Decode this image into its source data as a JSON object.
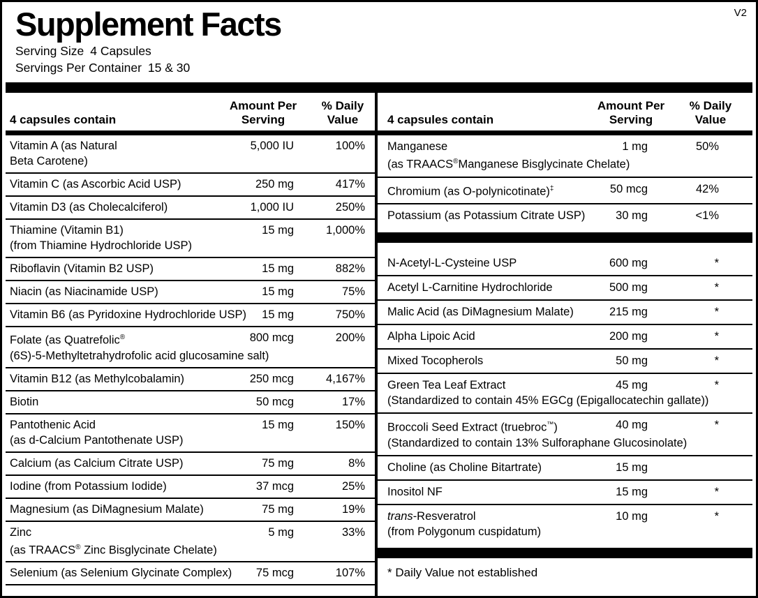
{
  "label": {
    "title": "Supplement Facts",
    "version": "V2",
    "serving_size_label": "Serving Size",
    "serving_size_value": "4 Capsules",
    "servings_per_container_label": "Servings Per Container",
    "servings_per_container_value": "15 & 30",
    "footnote": "*  Daily Value not established"
  },
  "columns": [
    {
      "id": "left",
      "header": {
        "contain": "4 capsules contain",
        "amount": "Amount Per Serving",
        "dv": "% Daily Value"
      },
      "sections": [
        {
          "rows": [
            {
              "lines": [
                [
                  {
                    "t": "Vitamin A (as Natural"
                  }
                ],
                [
                  {
                    "t": "Beta Carotene)"
                  }
                ]
              ],
              "amount": "5,000 IU",
              "dv": "100%"
            },
            {
              "lines": [
                [
                  {
                    "t": "Vitamin C (as Ascorbic Acid USP)"
                  }
                ]
              ],
              "amount": "250 mg",
              "dv": "417%"
            },
            {
              "lines": [
                [
                  {
                    "t": "Vitamin D3 (as Cholecalciferol)"
                  }
                ]
              ],
              "amount": "1,000 IU",
              "dv": "250%"
            },
            {
              "lines": [
                [
                  {
                    "t": "Thiamine (Vitamin B1)"
                  }
                ],
                [
                  {
                    "t": "(from Thiamine Hydrochloride USP)"
                  }
                ]
              ],
              "amount": "15 mg",
              "dv": "1,000%"
            },
            {
              "lines": [
                [
                  {
                    "t": "Riboflavin (Vitamin B2 USP)"
                  }
                ]
              ],
              "amount": "15 mg",
              "dv": "882%"
            },
            {
              "lines": [
                [
                  {
                    "t": "Niacin (as Niacinamide USP)"
                  }
                ]
              ],
              "amount": "15 mg",
              "dv": "75%"
            },
            {
              "lines": [
                [
                  {
                    "t": "Vitamin B6 (as Pyridoxine Hydrochloride USP)"
                  }
                ]
              ],
              "amount": "15 mg",
              "dv": "750%"
            },
            {
              "lines": [
                [
                  {
                    "t": "Folate (as Quatrefolic"
                  },
                  {
                    "t": "®",
                    "s": "sup"
                  }
                ],
                [
                  {
                    "t": "(6S)-5-Methyltetrahydrofolic acid glucosamine salt)"
                  }
                ]
              ],
              "amount": "800 mcg",
              "dv": "200%"
            },
            {
              "lines": [
                [
                  {
                    "t": "Vitamin B12 (as Methylcobalamin)"
                  }
                ]
              ],
              "amount": "250 mcg",
              "dv": "4,167%"
            },
            {
              "lines": [
                [
                  {
                    "t": "Biotin"
                  }
                ]
              ],
              "amount": "50 mcg",
              "dv": "17%"
            },
            {
              "lines": [
                [
                  {
                    "t": "Pantothenic Acid"
                  }
                ],
                [
                  {
                    "t": "(as d-Calcium Pantothenate USP)"
                  }
                ]
              ],
              "amount": "15 mg",
              "dv": "150%"
            },
            {
              "lines": [
                [
                  {
                    "t": "Calcium (as Calcium Citrate USP)"
                  }
                ]
              ],
              "amount": "75 mg",
              "dv": "8%"
            },
            {
              "lines": [
                [
                  {
                    "t": "Iodine (from Potassium Iodide)"
                  }
                ]
              ],
              "amount": "37 mcg",
              "dv": "25%"
            },
            {
              "lines": [
                [
                  {
                    "t": "Magnesium (as DiMagnesium Malate)"
                  }
                ]
              ],
              "amount": "75 mg",
              "dv": "19%"
            },
            {
              "lines": [
                [
                  {
                    "t": "Zinc"
                  }
                ],
                [
                  {
                    "t": "(as TRAACS"
                  },
                  {
                    "t": "®",
                    "s": "sup"
                  },
                  {
                    "t": " Zinc Bisglycinate Chelate)"
                  }
                ]
              ],
              "amount": "5 mg",
              "dv": "33%"
            },
            {
              "lines": [
                [
                  {
                    "t": "Selenium (as Selenium Glycinate Complex)"
                  }
                ]
              ],
              "amount": "75 mcg",
              "dv": "107%"
            }
          ]
        }
      ]
    },
    {
      "id": "right",
      "header": {
        "contain": "4 capsules contain",
        "amount": "Amount Per Serving",
        "dv": "% Daily Value"
      },
      "sections": [
        {
          "rows": [
            {
              "lines": [
                [
                  {
                    "t": "Manganese"
                  }
                ],
                [
                  {
                    "t": "(as TRAACS"
                  },
                  {
                    "t": "®",
                    "s": "sup"
                  },
                  {
                    "t": "Manganese Bisglycinate Chelate)"
                  }
                ]
              ],
              "amount": "1 mg",
              "dv": "50%"
            },
            {
              "lines": [
                [
                  {
                    "t": "Chromium (as O-polynicotinate)"
                  },
                  {
                    "t": "‡",
                    "s": "sup"
                  }
                ]
              ],
              "amount": "50 mcg",
              "dv": "42%"
            },
            {
              "lines": [
                [
                  {
                    "t": "Potassium (as Potassium Citrate USP)"
                  }
                ]
              ],
              "amount": "30 mg",
              "dv": "<1%"
            }
          ]
        },
        {
          "rows": [
            {
              "lines": [
                [
                  {
                    "t": "N-Acetyl-L-Cysteine USP"
                  }
                ]
              ],
              "amount": "600 mg",
              "dv": "*"
            },
            {
              "lines": [
                [
                  {
                    "t": "Acetyl L-Carnitine Hydrochloride"
                  }
                ]
              ],
              "amount": "500 mg",
              "dv": "*"
            },
            {
              "lines": [
                [
                  {
                    "t": "Malic Acid (as DiMagnesium Malate)"
                  }
                ]
              ],
              "amount": "215 mg",
              "dv": "*"
            },
            {
              "lines": [
                [
                  {
                    "t": "Alpha Lipoic Acid"
                  }
                ]
              ],
              "amount": "200 mg",
              "dv": "*"
            },
            {
              "lines": [
                [
                  {
                    "t": "Mixed Tocopherols"
                  }
                ]
              ],
              "amount": "50 mg",
              "dv": "*"
            },
            {
              "lines": [
                [
                  {
                    "t": "Green Tea Leaf Extract"
                  }
                ],
                [
                  {
                    "t": "(Standardized to contain 45% EGCg (Epigallocatechin gallate))"
                  }
                ]
              ],
              "amount": "45 mg",
              "dv": "*"
            },
            {
              "lines": [
                [
                  {
                    "t": "Broccoli Seed Extract (truebroc"
                  },
                  {
                    "t": "™",
                    "s": "sup"
                  },
                  {
                    "t": ")"
                  }
                ],
                [
                  {
                    "t": "(Standardized to contain 13% Sulforaphane Glucosinolate)"
                  }
                ]
              ],
              "amount": "40 mg",
              "dv": "*"
            },
            {
              "lines": [
                [
                  {
                    "t": "Choline (as Choline Bitartrate)"
                  }
                ]
              ],
              "amount": "15 mg",
              "dv": ""
            },
            {
              "lines": [
                [
                  {
                    "t": "Inositol NF"
                  }
                ]
              ],
              "amount": "15 mg",
              "dv": "*"
            },
            {
              "lines": [
                [
                  {
                    "t": "trans",
                    "s": "i"
                  },
                  {
                    "t": "-Resveratrol"
                  }
                ],
                [
                  {
                    "t": "(from Polygonum cuspidatum)"
                  }
                ]
              ],
              "amount": "10 mg",
              "dv": "*"
            }
          ]
        }
      ]
    }
  ]
}
